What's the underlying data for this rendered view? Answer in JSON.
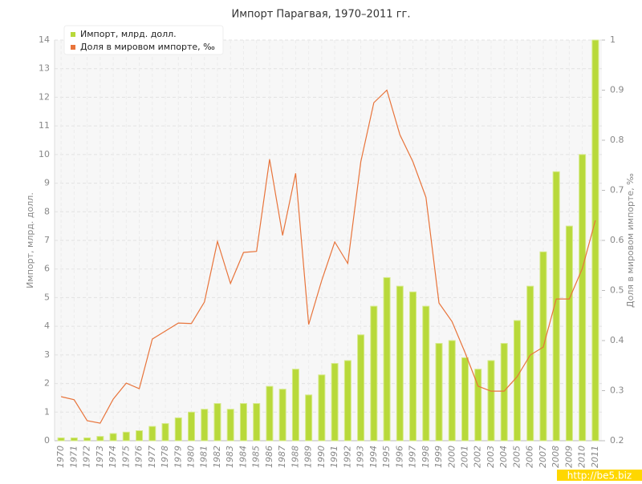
{
  "chart_data": {
    "type": "bar",
    "title": "Импорт Парагвая, 1970–2011 гг.",
    "y_label": "Импорт, млрд. долл.",
    "y2_label": "Доля в мировом импорте, ‰",
    "watermark": "http://be5.biz",
    "categories": [
      "1970",
      "1971",
      "1972",
      "1973",
      "1974",
      "1975",
      "1976",
      "1977",
      "1978",
      "1979",
      "1980",
      "1981",
      "1982",
      "1983",
      "1984",
      "1985",
      "1986",
      "1987",
      "1988",
      "1989",
      "1990",
      "1991",
      "1992",
      "1993",
      "1994",
      "1995",
      "1996",
      "1997",
      "1998",
      "1999",
      "2000",
      "2001",
      "2002",
      "2003",
      "2004",
      "2005",
      "2006",
      "2007",
      "2008",
      "2009",
      "2010",
      "2011"
    ],
    "series": [
      {
        "name": "Импорт, млрд. долл.",
        "type": "bar",
        "color": "#b8d93a",
        "values": [
          0.1,
          0.1,
          0.1,
          0.15,
          0.25,
          0.3,
          0.35,
          0.5,
          0.6,
          0.8,
          1.0,
          1.1,
          1.3,
          1.1,
          1.3,
          1.3,
          1.9,
          1.8,
          2.5,
          1.6,
          2.3,
          2.7,
          2.8,
          3.7,
          4.7,
          5.7,
          5.4,
          5.2,
          4.7,
          3.4,
          3.5,
          2.9,
          2.5,
          2.8,
          3.4,
          4.2,
          5.4,
          6.6,
          9.4,
          7.5,
          10.0,
          14.0
        ]
      },
      {
        "name": "Доля в мировом импорте, ‰",
        "type": "line",
        "axis": "y2",
        "color": "#e8743b",
        "values": [
          0.288,
          0.282,
          0.24,
          0.235,
          0.283,
          0.315,
          0.304,
          0.403,
          0.419,
          0.435,
          0.434,
          0.477,
          0.598,
          0.514,
          0.576,
          0.578,
          0.762,
          0.61,
          0.734,
          0.432,
          0.52,
          0.597,
          0.554,
          0.757,
          0.875,
          0.9,
          0.811,
          0.757,
          0.686,
          0.475,
          0.438,
          0.376,
          0.309,
          0.299,
          0.299,
          0.328,
          0.371,
          0.387,
          0.483,
          0.483,
          0.544,
          0.64
        ]
      }
    ],
    "ylim": [
      0,
      14
    ],
    "yticks": [
      0,
      1,
      2,
      3,
      4,
      5,
      6,
      7,
      8,
      9,
      10,
      11,
      12,
      13,
      14
    ],
    "y2lim": [
      0.2,
      1
    ],
    "y2ticks": [
      0.2,
      0.3,
      0.4,
      0.5,
      0.6,
      0.7,
      0.8,
      0.9,
      1
    ],
    "grid": true,
    "legend": "top-left"
  }
}
